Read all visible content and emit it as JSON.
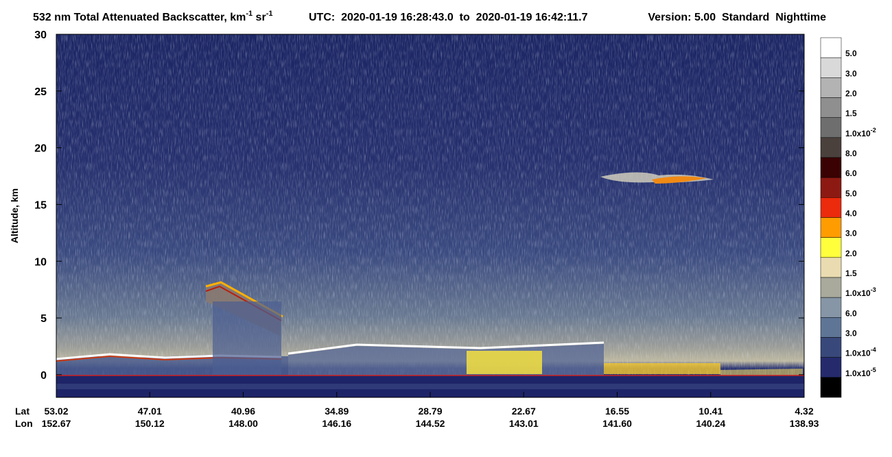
{
  "chart_data": {
    "type": "heatmap",
    "title": [
      "532 nm Total Attenuated Backscatter, km",
      "-1",
      " sr",
      "-1"
    ],
    "subtitle": "UTC:  2020-01-19 16:28:43.0  to  2020-01-19 16:42:11.7",
    "version": "Version: 5.00  Standard  Nighttime",
    "ylabel": "Altitude, km",
    "ylim": [
      -2,
      30
    ],
    "yticks": [
      0,
      5,
      10,
      15,
      20,
      25,
      30
    ],
    "x_row_labels": [
      "Lat",
      "Lon"
    ],
    "lat": [
      "53.02",
      "47.01",
      "40.96",
      "34.89",
      "28.79",
      "22.67",
      "16.55",
      "10.41",
      "4.32"
    ],
    "lon": [
      "152.67",
      "150.12",
      "148.00",
      "146.16",
      "144.52",
      "143.01",
      "141.60",
      "140.24",
      "138.93"
    ],
    "colorbar_colors": [
      "#ffffff",
      "#d9d9d9",
      "#b3b3b3",
      "#8f8f8f",
      "#6e6e6e",
      "#4a403c",
      "#3a0202",
      "#8c1a12",
      "#ec2a0c",
      "#ff9c00",
      "#ffff3c",
      "#eadcb0",
      "#a9a99c",
      "#8696a6",
      "#5e7596",
      "#38487a",
      "#252a6c",
      "#000000"
    ],
    "colorbar_labels": [
      "5.0",
      "3.0",
      "2.0",
      "1.5",
      [
        "1.0x10",
        "-2"
      ],
      "8.0",
      "6.0",
      "5.0",
      "4.0",
      "3.0",
      "2.0",
      "1.5",
      [
        "1.0x10",
        "-3"
      ],
      "6.0",
      "3.0",
      [
        "1.0x10",
        "-4"
      ],
      [
        "1.0x10",
        "-5"
      ]
    ]
  }
}
